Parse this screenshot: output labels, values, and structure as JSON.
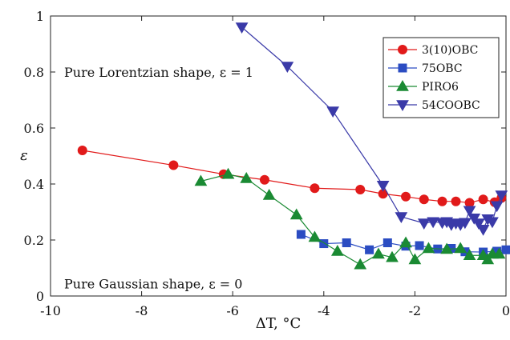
{
  "chart_data": {
    "type": "line",
    "xlabel": "ΔT, °C",
    "ylabel": "ε",
    "xlim": [
      -10,
      0
    ],
    "ylim": [
      0,
      1
    ],
    "xticks": [
      "-10",
      "-8",
      "-6",
      "-4",
      "-2",
      "0"
    ],
    "yticks": [
      "0",
      "0.2",
      "0.4",
      "0.6",
      "0.8",
      "1"
    ],
    "xtick_values": [
      -10,
      -8,
      -6,
      -4,
      -2,
      0
    ],
    "ytick_values": [
      0,
      0.2,
      0.4,
      0.6,
      0.8,
      1
    ],
    "grid": false,
    "legend_position": "top-right",
    "annotations": [
      {
        "text": "Pure Lorentzian shape, ε = 1",
        "x": -9.7,
        "y": 0.8
      },
      {
        "text": "Pure Gaussian shape, ε = 0",
        "x": -9.7,
        "y": 0.045
      }
    ],
    "series": [
      {
        "name": "3(10)OBC",
        "color": "#e11a1a",
        "marker": "circle",
        "x": [
          -9.3,
          -7.3,
          -6.2,
          -5.3,
          -4.2,
          -3.2,
          -2.7,
          -2.2,
          -1.8,
          -1.4,
          -1.1,
          -0.8,
          -0.5,
          -0.25,
          -0.1
        ],
        "y": [
          0.52,
          0.467,
          0.435,
          0.415,
          0.385,
          0.38,
          0.365,
          0.355,
          0.345,
          0.338,
          0.338,
          0.333,
          0.345,
          0.335,
          0.35
        ]
      },
      {
        "name": "75OBC",
        "color": "#2b4cc2",
        "marker": "square",
        "x": [
          -4.5,
          -4.0,
          -3.5,
          -3.0,
          -2.6,
          -2.2,
          -1.9,
          -1.5,
          -1.2,
          -0.9,
          -0.5,
          -0.2,
          0.0
        ],
        "y": [
          0.22,
          0.187,
          0.19,
          0.165,
          0.19,
          0.178,
          0.18,
          0.168,
          0.17,
          0.158,
          0.157,
          0.16,
          0.165
        ]
      },
      {
        "name": "PIRO6",
        "color": "#1a8a33",
        "marker": "triangle-up",
        "x": [
          -6.7,
          -6.1,
          -5.7,
          -5.2,
          -4.6,
          -4.2,
          -3.7,
          -3.2,
          -2.8,
          -2.5,
          -2.2,
          -2.0,
          -1.7,
          -1.3,
          -1.0,
          -0.8,
          -0.5,
          -0.4,
          -0.3,
          -0.15
        ],
        "y": [
          0.41,
          0.435,
          0.42,
          0.36,
          0.29,
          0.21,
          0.16,
          0.112,
          0.15,
          0.138,
          0.19,
          0.13,
          0.17,
          0.167,
          0.17,
          0.145,
          0.145,
          0.13,
          0.15,
          0.15
        ]
      },
      {
        "name": "54COOBC",
        "color": "#3a3aa8",
        "marker": "triangle-down",
        "x": [
          -5.8,
          -4.8,
          -3.8,
          -2.7,
          -2.3,
          -1.8,
          -1.6,
          -1.4,
          -1.3,
          -1.2,
          -1.1,
          -1.0,
          -0.9,
          -0.8,
          -0.7,
          -0.6,
          -0.5,
          -0.4,
          -0.3,
          -0.2,
          -0.1
        ],
        "y": [
          0.96,
          0.82,
          0.66,
          0.395,
          0.283,
          0.26,
          0.265,
          0.262,
          0.265,
          0.255,
          0.26,
          0.255,
          0.262,
          0.305,
          0.278,
          0.26,
          0.238,
          0.275,
          0.265,
          0.322,
          0.36
        ]
      }
    ]
  }
}
